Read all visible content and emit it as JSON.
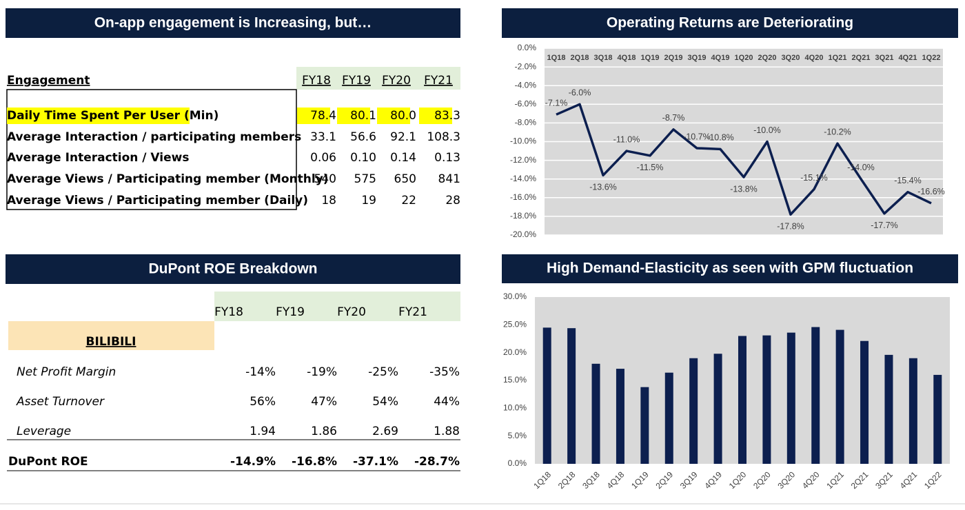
{
  "engagement": {
    "title": "On-app engagement is Increasing, but…",
    "header": [
      "Engagement",
      "FY18",
      "FY19",
      "FY20",
      "FY21"
    ],
    "rows": [
      [
        "Daily Time Spent Per User (Min)",
        "78.4",
        "80.1",
        "80.0",
        "83.3"
      ],
      [
        "Average Interaction / participating members",
        "33.1",
        "56.6",
        "92.1",
        "108.3"
      ],
      [
        "Average Interaction / Views",
        "0.06",
        "0.10",
        "0.14",
        "0.13"
      ],
      [
        "Average Views / Participating member (Monthly)",
        "540",
        "575",
        "650",
        "841"
      ],
      [
        "Average Views / Participating member (Daily)",
        "18",
        "19",
        "22",
        "28"
      ]
    ]
  },
  "dupont": {
    "title": "DuPont ROE Breakdown",
    "header": [
      "FY18",
      "FY19",
      "FY20",
      "FY21"
    ],
    "company": "BILIBILI",
    "rows": [
      [
        "Net Profit Margin",
        "-14%",
        "-19%",
        "-25%",
        "-35%"
      ],
      [
        "Asset Turnover",
        "56%",
        "47%",
        "54%",
        "44%"
      ],
      [
        "Leverage",
        "1.94",
        "1.86",
        "2.69",
        "1.88"
      ]
    ],
    "total": [
      "DuPont ROE",
      "-14.9%",
      "-16.8%",
      "-37.1%",
      "-28.7%"
    ]
  },
  "chart_data": [
    {
      "type": "line",
      "title": "Operating Returns are Deteriorating",
      "categories": [
        "1Q18",
        "2Q18",
        "3Q18",
        "4Q18",
        "1Q19",
        "2Q19",
        "3Q19",
        "4Q19",
        "1Q20",
        "2Q20",
        "3Q20",
        "4Q20",
        "1Q21",
        "2Q21",
        "3Q21",
        "4Q21",
        "1Q22"
      ],
      "values": [
        -7.1,
        -6.0,
        -13.6,
        -11.0,
        -11.5,
        -8.7,
        -10.7,
        -10.8,
        -13.8,
        -10.0,
        -17.8,
        -15.1,
        -10.2,
        -14.0,
        -17.7,
        -15.4,
        -16.6
      ],
      "value_labels": [
        "-7.1%",
        "-6.0%",
        "-13.6%",
        "-11.0%",
        "-11.5%",
        "-8.7%",
        "-10.7%",
        "-10.8%",
        "-13.8%",
        "-10.0%",
        "-17.8%",
        "-15.1%",
        "-10.2%",
        "-14.0%",
        "-17.7%",
        "-15.4%",
        "-16.6%"
      ],
      "color": "#0c1f4f",
      "ylim": [
        -20,
        0
      ],
      "yticks": [
        {
          "value": 0,
          "label": "0.0%"
        },
        {
          "value": -2,
          "label": "-2.0%"
        },
        {
          "value": -4,
          "label": "-4.0%"
        },
        {
          "value": -6,
          "label": "-6.0%"
        },
        {
          "value": -8,
          "label": "-8.0%"
        },
        {
          "value": -10,
          "label": "-10.0%"
        },
        {
          "value": -12,
          "label": "-12.0%"
        },
        {
          "value": -14,
          "label": "-14.0%"
        },
        {
          "value": -16,
          "label": "-16.0%"
        },
        {
          "value": -18,
          "label": "-18.0%"
        },
        {
          "value": -20,
          "label": "-20.0%"
        }
      ],
      "grid": true
    },
    {
      "type": "bar",
      "title": "High Demand-Elasticity as seen with GPM fluctuation",
      "categories": [
        "1Q18",
        "2Q18",
        "3Q18",
        "4Q18",
        "1Q19",
        "2Q19",
        "3Q19",
        "4Q19",
        "1Q20",
        "2Q20",
        "3Q20",
        "4Q20",
        "1Q21",
        "2Q21",
        "3Q21",
        "4Q21",
        "1Q22"
      ],
      "values": [
        24.5,
        24.4,
        18.0,
        17.1,
        13.8,
        16.4,
        19.0,
        19.8,
        23.0,
        23.1,
        23.6,
        24.6,
        24.1,
        22.1,
        19.6,
        19.0,
        16.0
      ],
      "color": "#0c1f4f",
      "ylim": [
        0,
        30
      ],
      "yticks": [
        {
          "value": 0,
          "label": "0.0%"
        },
        {
          "value": 5,
          "label": "5.0%"
        },
        {
          "value": 10,
          "label": "10.0%"
        },
        {
          "value": 15,
          "label": "15.0%"
        },
        {
          "value": 20,
          "label": "20.0%"
        },
        {
          "value": 25,
          "label": "25.0%"
        },
        {
          "value": 30,
          "label": "30.0%"
        }
      ],
      "grid": false
    }
  ]
}
